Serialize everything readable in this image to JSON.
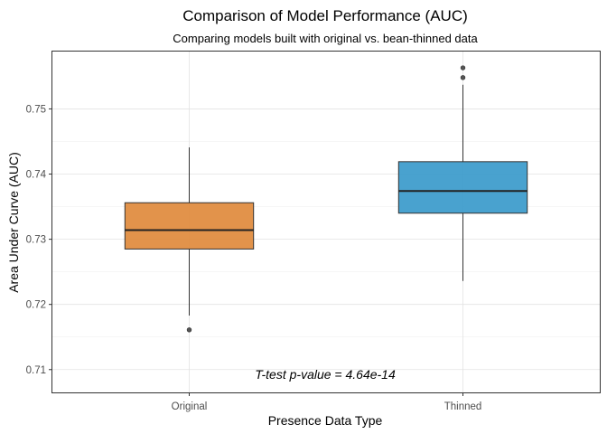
{
  "chart_data": {
    "type": "box",
    "title": "Comparison of Model Performance (AUC)",
    "subtitle": "Comparing models built with original vs. bean-thinned data",
    "xlabel": "Presence Data Type",
    "ylabel": "Area Under Curve (AUC)",
    "ylim": [
      0.7065,
      0.7588
    ],
    "y_ticks": [
      0.71,
      0.72,
      0.73,
      0.74,
      0.75
    ],
    "y_tick_labels": [
      "0.71",
      "0.72",
      "0.73",
      "0.74",
      "0.75"
    ],
    "categories": [
      "Original",
      "Thinned"
    ],
    "boxes": [
      {
        "category": "Original",
        "whisker_low": 0.7183,
        "q1": 0.7285,
        "median": 0.7314,
        "q3": 0.7356,
        "whisker_high": 0.7441,
        "outliers": [
          0.7161
        ],
        "color": "#e08a3c"
      },
      {
        "category": "Thinned",
        "whisker_low": 0.7236,
        "q1": 0.734,
        "median": 0.7374,
        "q3": 0.7419,
        "whisker_high": 0.7537,
        "outliers": [
          0.7548,
          0.7563
        ],
        "color": "#3a9acb"
      }
    ],
    "annotation": "T-test p-value = 4.64e-14",
    "grid": true,
    "legend": "none"
  }
}
